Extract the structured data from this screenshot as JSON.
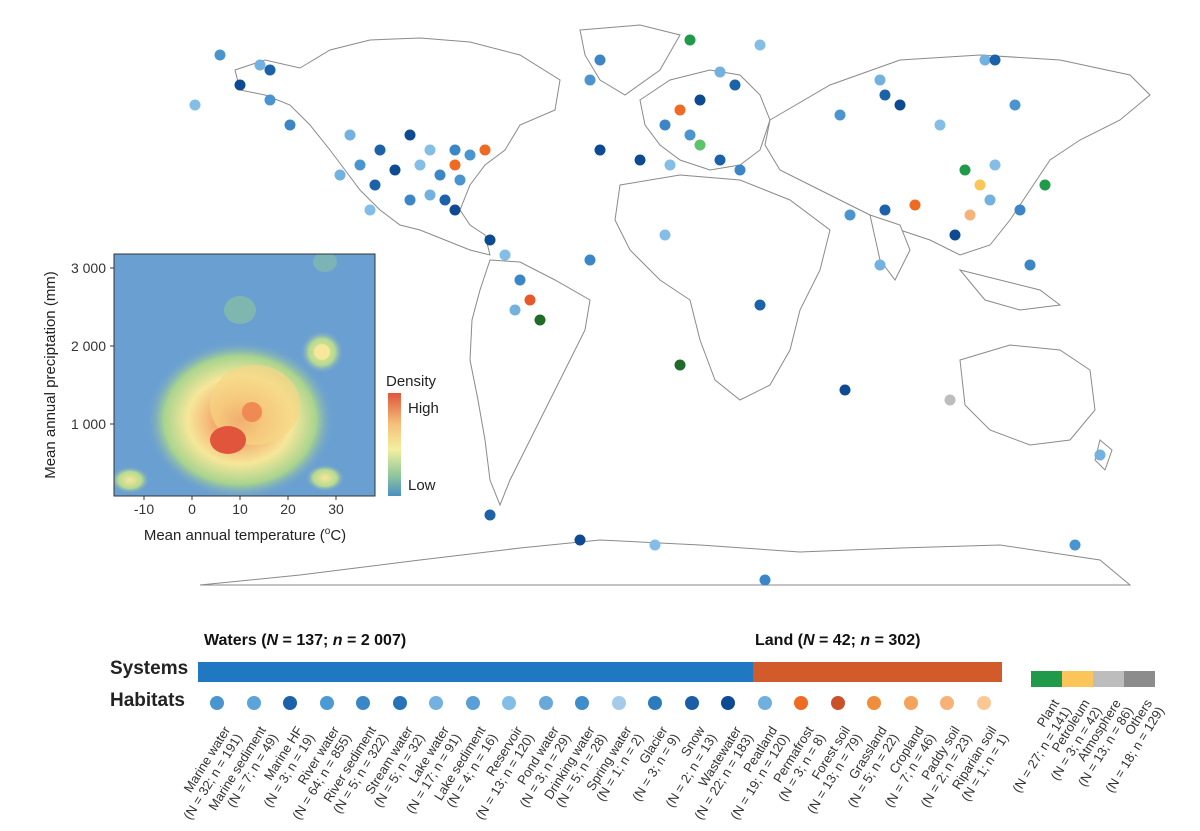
{
  "inset": {
    "ylabel": "Mean annual preciptation (mm)",
    "xlabel_prefix": "Mean annual temperature (",
    "xlabel_sup": "o",
    "xlabel_suffix": "C)",
    "yticks": [
      "3 000",
      "2 000",
      "1 000"
    ],
    "xticks": [
      "-10",
      "0",
      "10",
      "20",
      "30"
    ],
    "legend_title": "Density",
    "legend_high": "High",
    "legend_low": "Low"
  },
  "systems": {
    "row_label": "Systems",
    "waters_label": "Waters (",
    "waters_N": "N",
    "waters_rest": " = 137; ",
    "waters_n": "n",
    "waters_end": " = 2 007)",
    "land_label": "Land (",
    "land_N": "N",
    "land_rest": " = 42; ",
    "land_n": "n",
    "land_end": " = 302)",
    "waters_color": "#1f78c1",
    "land_color": "#d35a2a"
  },
  "habitats_label": "Habitats",
  "habitats": [
    {
      "name": "Marine water",
      "stats": "(N = 32; n = 191)",
      "color": "#4a95d0"
    },
    {
      "name": "Marine sediment",
      "stats": "(N = 7; n = 49)",
      "color": "#5ba3d8"
    },
    {
      "name": "Marine HF",
      "stats": "(N = 3; n = 19)",
      "color": "#1c62a8"
    },
    {
      "name": "River water",
      "stats": "(N = 64; n = 855)",
      "color": "#4c9ad3"
    },
    {
      "name": "River sediment",
      "stats": "(N = 5; n = 322)",
      "color": "#3a86c6"
    },
    {
      "name": "Stream water",
      "stats": "(N = 5; n = 32)",
      "color": "#2773b8"
    },
    {
      "name": "Lake water",
      "stats": "(N = 17; n = 91)",
      "color": "#72b1e0"
    },
    {
      "name": "Lake sediment",
      "stats": "(N = 4; n = 16)",
      "color": "#5aa0d6"
    },
    {
      "name": "Reservoir",
      "stats": "(N = 13; n = 120)",
      "color": "#84bde6"
    },
    {
      "name": "Pond water",
      "stats": "(N = 3; n = 29)",
      "color": "#6aa8da"
    },
    {
      "name": "Drinking water",
      "stats": "(N = 5; n = 28)",
      "color": "#3f8dca"
    },
    {
      "name": "Spring water",
      "stats": "(N = 1; n = 2)",
      "color": "#a6cbe8"
    },
    {
      "name": "Glacier",
      "stats": "(N = 3; n = 9)",
      "color": "#2d7bbf"
    },
    {
      "name": "Snow",
      "stats": "(N = 2; n = 13)",
      "color": "#1a5fa6"
    },
    {
      "name": "Wastewater",
      "stats": "(N = 22; n = 183)",
      "color": "#0e4a92"
    },
    {
      "name": "Peatland",
      "stats": "(N = 19; n = 120)",
      "color": "#6fb0df"
    },
    {
      "name": "Permafrost",
      "stats": "(N = 3; n = 8)",
      "color": "#ef6a22"
    },
    {
      "name": "Forest soil",
      "stats": "(N = 13; n = 79)",
      "color": "#c9502a"
    },
    {
      "name": "Grassland",
      "stats": "(N = 5; n = 22)",
      "color": "#f08c3c"
    },
    {
      "name": "Cropland",
      "stats": "(N = 7; n = 46)",
      "color": "#f5a35b"
    },
    {
      "name": "Paddy soil",
      "stats": "(N = 2; n = 23)",
      "color": "#f7b27a"
    },
    {
      "name": "Riparian soil",
      "stats": "(N = 1; n = 1)",
      "color": "#e8582a"
    }
  ],
  "others": [
    {
      "name": "Plant",
      "stats": "(N = 27; n = 141)",
      "color": "#1e9a4a"
    },
    {
      "name": "Petroleum",
      "stats": "(N = 3; n = 42)",
      "color": "#fcc55a"
    },
    {
      "name": "Atmosphere",
      "stats": "(N = 13; n = 86)",
      "color": "#bdbdbd"
    },
    {
      "name": "Others",
      "stats": "(N = 18; n = 129)",
      "color": "#8c8c8c"
    }
  ],
  "land_habitat_last_color": "#fbc894"
}
